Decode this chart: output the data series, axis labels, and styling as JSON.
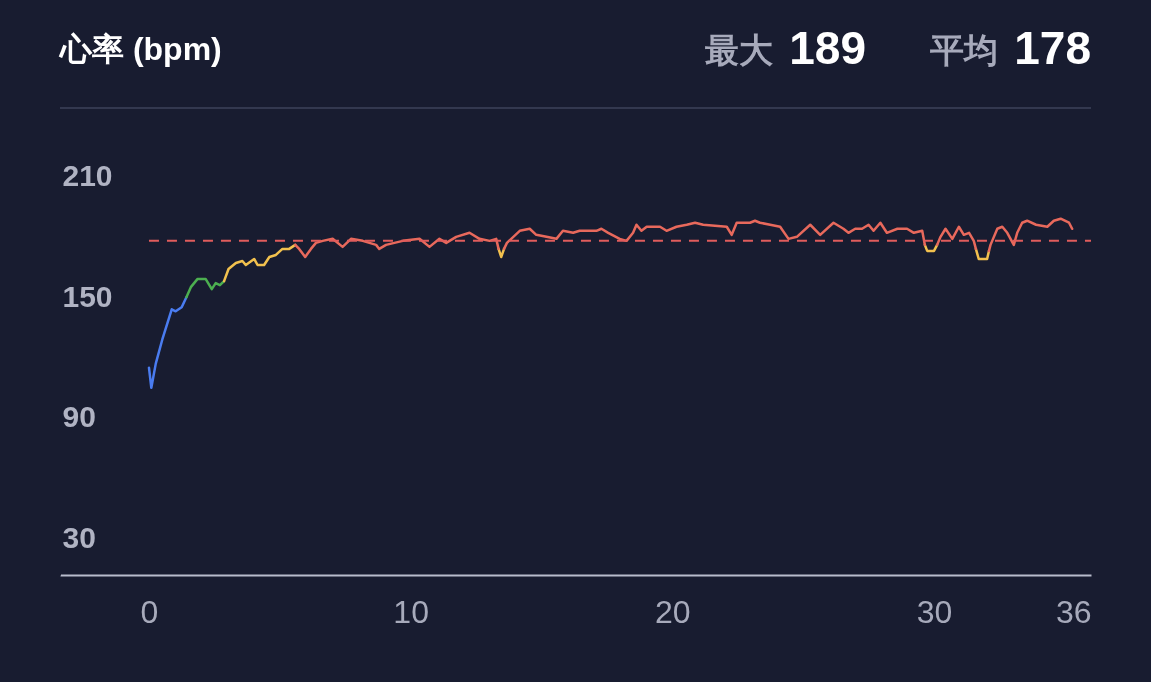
{
  "chart_data": {
    "type": "line",
    "title": "心率 (bpm)",
    "annotations": [
      "最大 189",
      "平均 178"
    ],
    "xlim": [
      -3.4,
      36
    ],
    "xticks": [
      0,
      10,
      20,
      30,
      36
    ],
    "ylim": [
      12,
      244
    ],
    "yticks": [
      30,
      90,
      150,
      210
    ],
    "grid": false,
    "series": [
      {
        "color": "#4a7cf0",
        "x": [
          0,
          0.09,
          0.26,
          0.51,
          0.87,
          1.02,
          1.25,
          1.43
        ],
        "values": [
          115,
          105,
          117,
          129,
          144,
          143,
          145,
          150
        ]
      },
      {
        "color": "#4caf50",
        "x": [
          1.43,
          1.6,
          1.85,
          2.17,
          2.4,
          2.55,
          2.71,
          2.87
        ],
        "values": [
          150,
          155,
          159,
          159,
          154,
          157,
          156,
          158
        ]
      },
      {
        "color": "#f2c14e",
        "x": [
          2.87,
          3.04,
          3.32,
          3.57,
          3.7,
          4.02,
          4.15,
          4.4,
          4.6,
          4.85,
          5.1,
          5.36,
          5.59,
          9.5,
          13.36,
          13.46,
          13.57,
          20,
          29.65,
          29.74,
          30.0,
          30.12,
          31,
          31.6,
          31.71,
          32.03,
          32.1
        ],
        "values": [
          158,
          164,
          167,
          168,
          166,
          169,
          166,
          166,
          170,
          171,
          174,
          174,
          176,
          null,
          174,
          170,
          174,
          null,
          176,
          173,
          173,
          176,
          null,
          174,
          169,
          169,
          173
        ]
      },
      {
        "color": "#e8695c",
        "x": [
          5.59,
          5.74,
          5.97,
          6.19,
          6.38,
          6.64,
          7.02,
          7.4,
          7.72,
          8.17,
          8.68,
          8.8,
          9.06,
          9.7,
          10.34,
          10.72,
          11.1,
          11.36,
          11.74,
          12.25,
          12.63,
          13.02,
          13.27,
          13.36,
          13.41,
          13.57,
          13.68,
          14.17,
          14.55,
          14.8,
          15.19,
          15.57,
          15.82,
          16.21,
          16.46,
          17.1,
          17.29,
          17.55,
          17.99,
          18.25,
          18.5,
          18.63,
          18.82,
          19.02,
          19.53,
          19.78,
          20.16,
          20.55,
          20.87,
          21.18,
          22.08,
          22.27,
          22.46,
          22.97,
          23.16,
          23.35,
          23.74,
          24.12,
          24.44,
          24.76,
          25.27,
          25.65,
          26.16,
          26.54,
          26.73,
          26.99,
          27.25,
          27.5,
          27.69,
          27.95,
          28.2,
          28.6,
          28.97,
          29.23,
          29.55,
          29.65,
          29.8,
          30.12,
          30.25,
          30.44,
          30.7,
          30.95,
          31.14,
          31.34,
          31.52,
          31.6,
          31.8,
          32.1,
          32.16,
          32.42,
          32.61,
          32.8,
          33.05,
          33.18,
          33.37,
          33.56,
          33.9,
          34.33,
          34.58,
          34.84,
          35.16,
          35.28
        ],
        "values": [
          176,
          174,
          170,
          174,
          177,
          178,
          179,
          175,
          179,
          178,
          176,
          174,
          176,
          178,
          179,
          175,
          179,
          177,
          180,
          182,
          179,
          178,
          179,
          174,
          null,
          174,
          177,
          183,
          184,
          181,
          180,
          179,
          183,
          182,
          183,
          183,
          184,
          182,
          179,
          178,
          182,
          186,
          183,
          185,
          185,
          183,
          185,
          186,
          187,
          186,
          185,
          181,
          187,
          187,
          188,
          187,
          186,
          185,
          179,
          180,
          186,
          181,
          187,
          184,
          182,
          184,
          184,
          186,
          183,
          187,
          182,
          184,
          184,
          182,
          183,
          176,
          null,
          176,
          180,
          184,
          179,
          185,
          181,
          182,
          178,
          174,
          null,
          173,
          176,
          184,
          185,
          182,
          176,
          182,
          187,
          188,
          186,
          185,
          188,
          189,
          187,
          184
        ]
      }
    ],
    "ref_lines": [
      {
        "axis": "y",
        "value": 178,
        "color": "#e05c5c",
        "line_style": "dashed"
      }
    ]
  }
}
